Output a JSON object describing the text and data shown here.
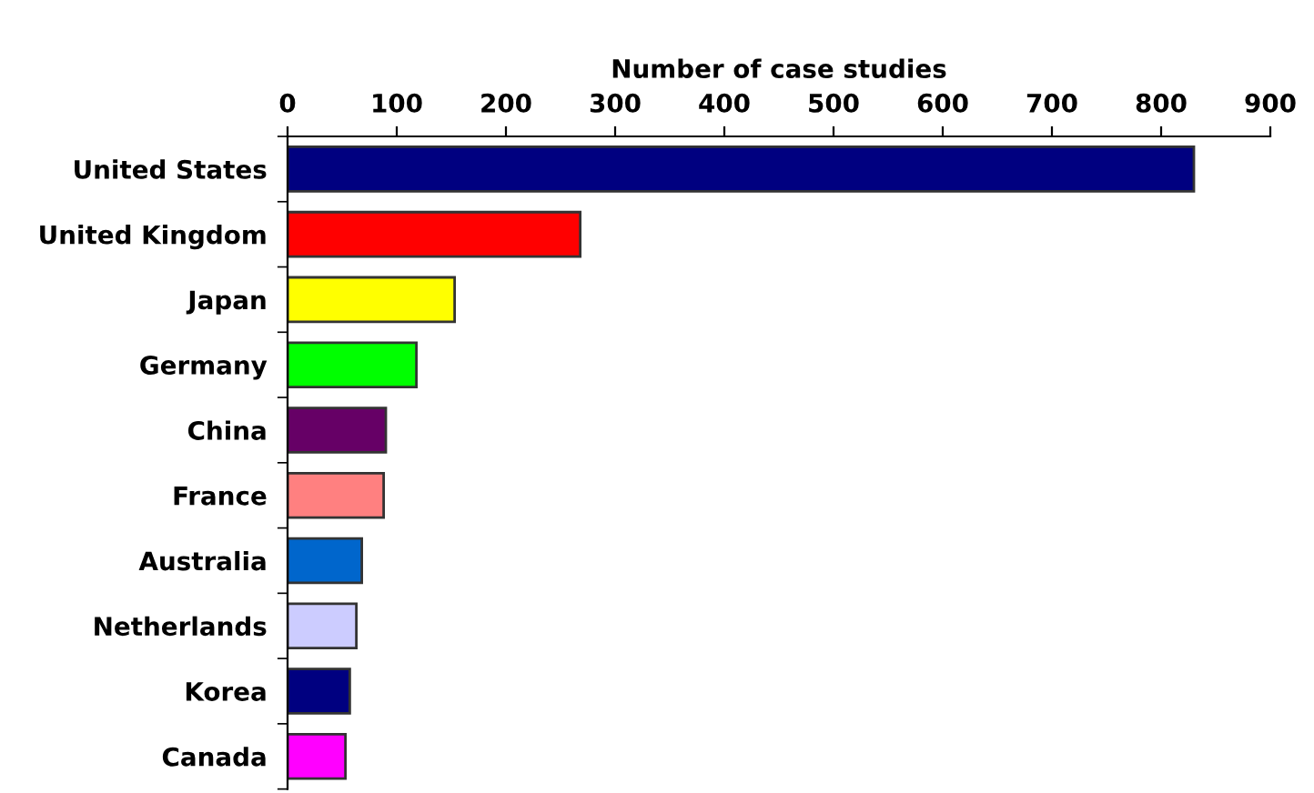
{
  "chart_data": {
    "type": "bar",
    "orientation": "horizontal",
    "xlabel": "Number of case studies",
    "categories": [
      "United States",
      "United Kingdom",
      "Japan",
      "Germany",
      "China",
      "France",
      "Australia",
      "Netherlands",
      "Korea",
      "Canada"
    ],
    "values": [
      830,
      268,
      153,
      118,
      90,
      88,
      68,
      63,
      57,
      53
    ],
    "colors": [
      "#000080",
      "#ff0000",
      "#ffff00",
      "#00ff00",
      "#660066",
      "#ff8080",
      "#0066cc",
      "#ccccff",
      "#000080",
      "#ff00ff"
    ],
    "xlim": [
      0,
      900
    ],
    "xticks": [
      0,
      100,
      200,
      300,
      400,
      500,
      600,
      700,
      800,
      900
    ],
    "grid": false,
    "legend": false
  }
}
